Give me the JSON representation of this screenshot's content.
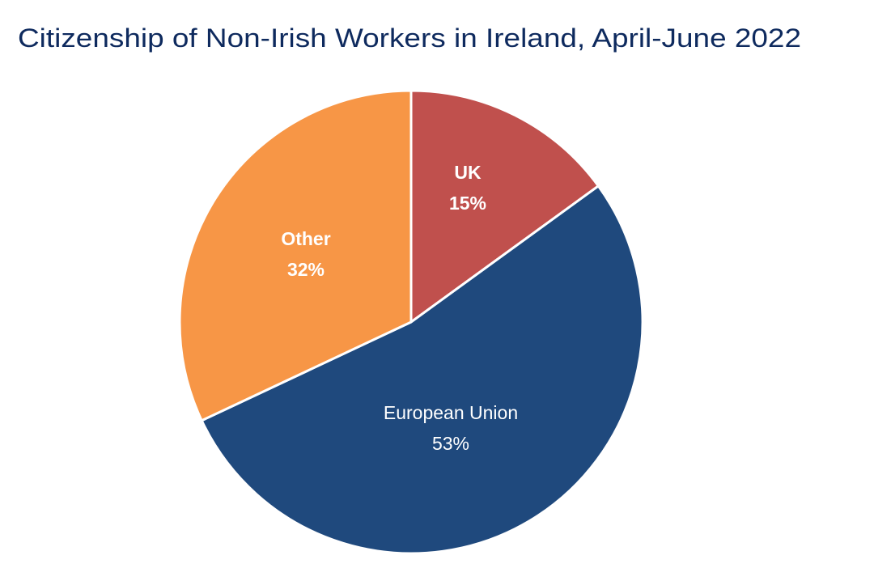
{
  "chart_data": {
    "type": "pie",
    "title": "Citizenship of Non-Irish Workers in Ireland, April-June 2022",
    "start_angle": "12 o'clock",
    "direction": "clockwise",
    "slices": [
      {
        "label": "UK",
        "value": 15,
        "value_label": "15%",
        "color": "#C0504D",
        "label_bold": true
      },
      {
        "label": "European Union",
        "value": 53,
        "value_label": "53%",
        "color": "#1F497D",
        "label_bold": false
      },
      {
        "label": "Other",
        "value": 32,
        "value_label": "32%",
        "color": "#F79646",
        "label_bold": true
      }
    ],
    "title_color": "#0E2A5E",
    "label_color": "#FFFFFF",
    "legend": "none"
  }
}
